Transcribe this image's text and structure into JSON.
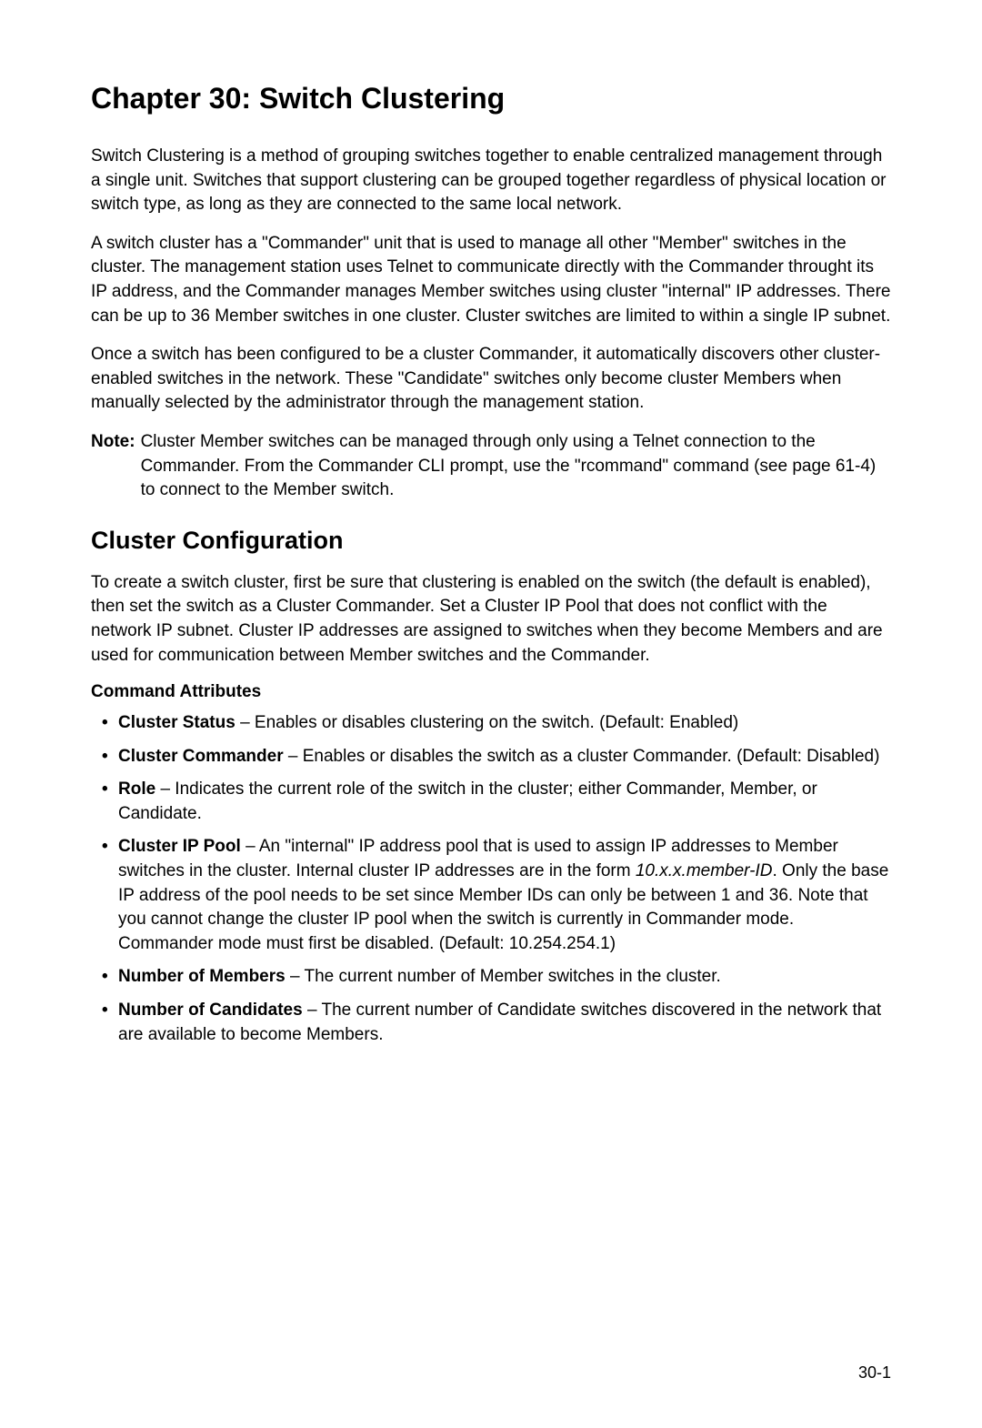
{
  "chapter": {
    "title": "Chapter 30: Switch Clustering"
  },
  "paragraphs": {
    "p1": "Switch Clustering is a method of grouping switches together to enable centralized management through a single unit. Switches that support clustering can be grouped together regardless of physical location or switch type, as long as they are connected to the same local network.",
    "p2": "A switch cluster has a \"Commander\" unit that is used to manage all other \"Member\" switches in the cluster. The management station uses Telnet to communicate directly with the Commander throught its IP address, and the Commander manages Member switches using cluster \"internal\" IP addresses. There can be up to 36 Member switches in one cluster. Cluster switches are limited to within a single IP subnet.",
    "p3": "Once a switch has been configured to be a cluster Commander, it automatically discovers other cluster-enabled switches in the network. These \"Candidate\" switches only become cluster Members when manually selected by the administrator through the management station."
  },
  "note": {
    "label": "Note:",
    "text": "Cluster Member switches can be managed through only using a Telnet connection to the Commander. From the Commander CLI prompt, use the \"rcommand\" command (see page 61-4) to connect to the Member switch."
  },
  "section": {
    "title": "Cluster Configuration",
    "intro": "To create a switch cluster, first be sure that clustering is enabled on the switch (the default is enabled), then set the switch as a Cluster Commander. Set a Cluster IP Pool that does not conflict with the network IP subnet. Cluster IP addresses are assigned to switches when they become Members and are used for communication between Member switches and the Commander."
  },
  "subsection": {
    "title": "Command Attributes"
  },
  "attributes": {
    "a1_bold": "Cluster Status",
    "a1_text": " – Enables or disables clustering on the switch. (Default: Enabled)",
    "a2_bold": "Cluster Commander",
    "a2_text": " – Enables or disables the switch as a cluster Commander. (Default: Disabled)",
    "a3_bold": "Role",
    "a3_text": " – Indicates the current role of the switch in the cluster; either Commander, Member, or Candidate.",
    "a4_bold": "Cluster IP Pool",
    "a4_text_before": " – An \"internal\" IP address pool that is used to assign IP addresses to Member switches in the cluster. Internal cluster IP addresses are in the form ",
    "a4_italic": "10.x.x.member-ID",
    "a4_text_after": ". Only the base IP address of the pool needs to be set since Member IDs can only be between 1 and 36. Note that you cannot change the cluster IP pool when the switch is currently in Commander mode. Commander mode must first be disabled. (Default: 10.254.254.1)",
    "a5_bold": "Number of Members",
    "a5_text": " – The current number of Member switches in the cluster.",
    "a6_bold": "Number of Candidates",
    "a6_text": " – The current number of Candidate switches discovered in the network that are available to become Members."
  },
  "page_number": "30-1"
}
